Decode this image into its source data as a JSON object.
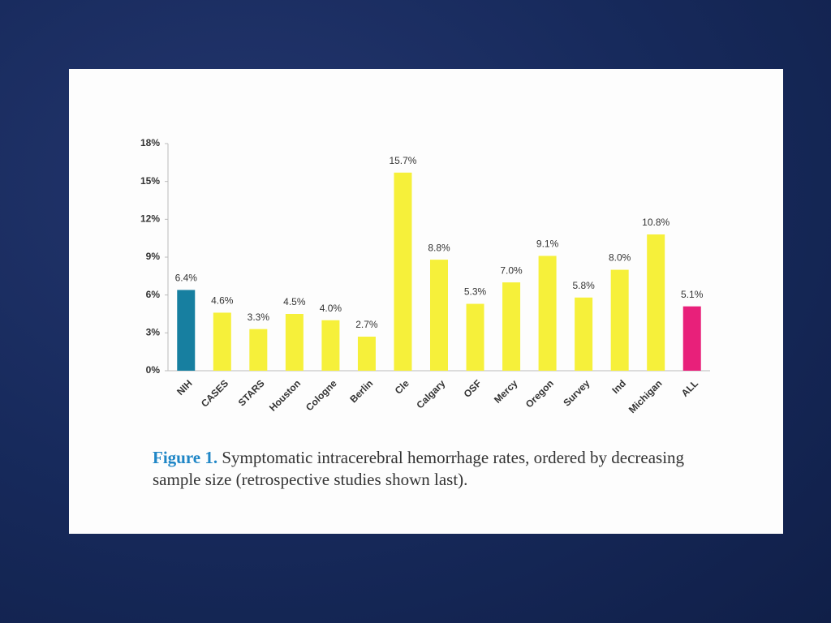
{
  "chart_data": {
    "type": "bar",
    "categories": [
      "NIH",
      "CASES",
      "STARS",
      "Houston",
      "Cologne",
      "Berlin",
      "Cle",
      "Calgary",
      "OSF",
      "Mercy",
      "Oregon",
      "Survey",
      "Ind",
      "Michigan",
      "ALL"
    ],
    "values": [
      6.4,
      4.6,
      3.3,
      4.5,
      4.0,
      2.7,
      15.7,
      8.8,
      5.3,
      7.0,
      9.1,
      5.8,
      8.0,
      10.8,
      5.1
    ],
    "value_labels": [
      "6.4%",
      "4.6%",
      "3.3%",
      "4.5%",
      "4.0%",
      "2.7%",
      "15.7%",
      "8.8%",
      "5.3%",
      "7.0%",
      "9.1%",
      "5.8%",
      "8.0%",
      "10.8%",
      "5.1%"
    ],
    "colors": [
      "#177fa0",
      "#f6f03a",
      "#f6f03a",
      "#f6f03a",
      "#f6f03a",
      "#f6f03a",
      "#f6f03a",
      "#f6f03a",
      "#f6f03a",
      "#f6f03a",
      "#f6f03a",
      "#f6f03a",
      "#f6f03a",
      "#f6f03a",
      "#e8207a"
    ],
    "ylim": [
      0,
      18
    ],
    "yticks": [
      {
        "value": 0,
        "label": "0%"
      },
      {
        "value": 3,
        "label": "3%"
      },
      {
        "value": 6,
        "label": "6%"
      },
      {
        "value": 9,
        "label": "9%"
      },
      {
        "value": 12,
        "label": "12%"
      },
      {
        "value": 15,
        "label": "15%"
      },
      {
        "value": 18,
        "label": "18%"
      }
    ],
    "grid": false,
    "caption_label": "Figure 1.",
    "caption": "Symptomatic intracerebral hemorrhage rates, ordered by decreasing sample size (retrospective studies shown last)."
  }
}
